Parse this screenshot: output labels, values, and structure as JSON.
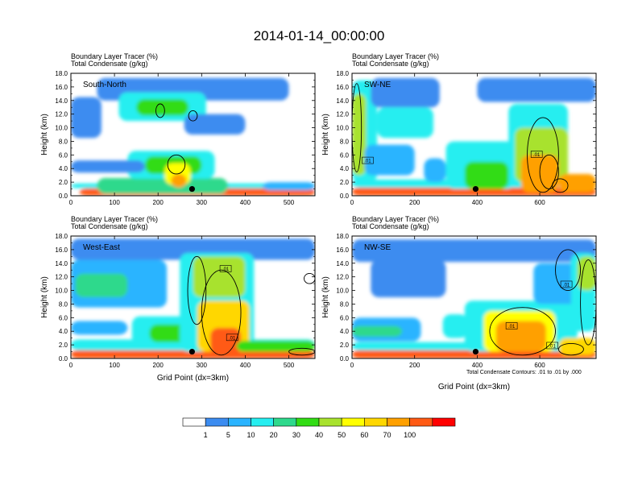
{
  "page": {
    "title": "2014-01-14_00:00:00",
    "x_axis_label": "Grid Point (dx=3km)",
    "contour_note": "Total Condensate Contours: .01 to .01 by .000"
  },
  "colorbar": {
    "colors": [
      "#ffffff",
      "#3c8cf0",
      "#2ab4ff",
      "#26eef0",
      "#2ed98c",
      "#32dc14",
      "#a8e22d",
      "#ffff00",
      "#ffd700",
      "#ffa000",
      "#ff5a14",
      "#ff0000"
    ],
    "labels": [
      "1",
      "5",
      "10",
      "20",
      "30",
      "40",
      "50",
      "60",
      "70",
      "100"
    ]
  },
  "chart_data": [
    {
      "type": "heatmap",
      "panel": "South-North",
      "title_line1": "Boundary Layer Tracer   (%)",
      "title_line2": "Total Condensate   (g/kg)",
      "xlabel": "",
      "ylabel": "Height (km)",
      "xlim": [
        0,
        560
      ],
      "ylim": [
        0,
        18
      ],
      "xticks": [
        "0",
        "100",
        "200",
        "300",
        "400",
        "500"
      ],
      "xtick_values": [
        0,
        100,
        200,
        300,
        400,
        500
      ],
      "yticks": [
        "0.0",
        "2.0",
        "4.0",
        "6.0",
        "8.0",
        "10.0",
        "12.0",
        "14.0",
        "16.0",
        "18.0"
      ],
      "marker": {
        "x": 278,
        "y": 1.0
      },
      "blobs": [
        {
          "x": [
            20,
            560
          ],
          "y": [
            0,
            1.1
          ],
          "level": 10
        },
        {
          "x": [
            0,
            560
          ],
          "y": [
            1.1,
            1.8
          ],
          "level": 3
        },
        {
          "x": [
            60,
            360
          ],
          "y": [
            0.3,
            2.6
          ],
          "level": 4
        },
        {
          "x": [
            130,
            330
          ],
          "y": [
            2.5,
            6.6
          ],
          "level": 3
        },
        {
          "x": [
            170,
            300
          ],
          "y": [
            3.2,
            5.8
          ],
          "level": 5
        },
        {
          "x": [
            215,
            275
          ],
          "y": [
            1.6,
            4.8
          ],
          "level": 7
        },
        {
          "x": [
            230,
            265
          ],
          "y": [
            1.2,
            3.2
          ],
          "level": 9
        },
        {
          "x": [
            0,
            170
          ],
          "y": [
            3.4,
            5.2
          ],
          "level": 1
        },
        {
          "x": [
            60,
            500
          ],
          "y": [
            14.0,
            17.3
          ],
          "level": 1
        },
        {
          "x": [
            110,
            310
          ],
          "y": [
            11.0,
            15.2
          ],
          "level": 3
        },
        {
          "x": [
            150,
            270
          ],
          "y": [
            11.8,
            14.2
          ],
          "level": 5
        },
        {
          "x": [
            0,
            70
          ],
          "y": [
            8.5,
            14.5
          ],
          "level": 1
        },
        {
          "x": [
            260,
            400
          ],
          "y": [
            9.0,
            12.0
          ],
          "level": 1
        },
        {
          "x": [
            440,
            560
          ],
          "y": [
            0.8,
            2.0
          ],
          "level": 2
        }
      ],
      "contours": [
        {
          "x": [
            195,
            215
          ],
          "y": [
            11.5,
            13.5
          ]
        },
        {
          "x": [
            270,
            290
          ],
          "y": [
            11.0,
            12.5
          ]
        },
        {
          "x": [
            222,
            262
          ],
          "y": [
            3.2,
            6.0
          ]
        }
      ],
      "box_labels": []
    },
    {
      "type": "heatmap",
      "panel": "SW-NE",
      "title_line1": "Boundary Layer Tracer   (%)",
      "title_line2": "Total Condensate   (g/kg)",
      "xlabel": "",
      "ylabel": "Height (km)",
      "xlim": [
        0,
        780
      ],
      "ylim": [
        0,
        18
      ],
      "xticks": [
        "0",
        "200",
        "400",
        "600"
      ],
      "xtick_values": [
        0,
        200,
        400,
        600
      ],
      "yticks": [
        "0.0",
        "2.0",
        "4.0",
        "6.0",
        "8.0",
        "10.0",
        "12.0",
        "14.0",
        "16.0",
        "18.0"
      ],
      "marker": {
        "x": 395,
        "y": 1.0
      },
      "blobs": [
        {
          "x": [
            0,
            780
          ],
          "y": [
            0,
            1.2
          ],
          "level": 10
        },
        {
          "x": [
            0,
            780
          ],
          "y": [
            1.2,
            2.4
          ],
          "level": 3
        },
        {
          "x": [
            0,
            80
          ],
          "y": [
            2.0,
            17.0
          ],
          "level": 3
        },
        {
          "x": [
            0,
            45
          ],
          "y": [
            3.0,
            15.0
          ],
          "level": 6
        },
        {
          "x": [
            60,
            280
          ],
          "y": [
            13.0,
            17.3
          ],
          "level": 1
        },
        {
          "x": [
            80,
            260
          ],
          "y": [
            8.5,
            13.0
          ],
          "level": 3
        },
        {
          "x": [
            40,
            200
          ],
          "y": [
            3.0,
            7.5
          ],
          "level": 2
        },
        {
          "x": [
            400,
            780
          ],
          "y": [
            13.8,
            17.3
          ],
          "level": 1
        },
        {
          "x": [
            500,
            690
          ],
          "y": [
            2.0,
            13.5
          ],
          "level": 3
        },
        {
          "x": [
            520,
            690
          ],
          "y": [
            2.0,
            10.0
          ],
          "level": 6
        },
        {
          "x": [
            540,
            660
          ],
          "y": [
            0.5,
            6.0
          ],
          "level": 9
        },
        {
          "x": [
            300,
            520
          ],
          "y": [
            1.0,
            8.0
          ],
          "level": 3
        },
        {
          "x": [
            360,
            500
          ],
          "y": [
            1.0,
            5.0
          ],
          "level": 5
        },
        {
          "x": [
            660,
            780
          ],
          "y": [
            0.5,
            3.2
          ],
          "level": 9
        },
        {
          "x": [
            230,
            300
          ],
          "y": [
            2.0,
            5.5
          ],
          "level": 2
        }
      ],
      "contours": [
        {
          "x": [
            560,
            660
          ],
          "y": [
            0.5,
            11.5
          ]
        },
        {
          "x": [
            600,
            660
          ],
          "y": [
            1.0,
            6.0
          ]
        },
        {
          "x": [
            0,
            30
          ],
          "y": [
            3.5,
            16.5
          ]
        },
        {
          "x": [
            640,
            690
          ],
          "y": [
            0.5,
            2.5
          ]
        }
      ],
      "box_labels": [
        {
          "x": 50,
          "y": 5.2,
          "text": ".01"
        },
        {
          "x": 590,
          "y": 6.1,
          "text": ".01"
        }
      ]
    },
    {
      "type": "heatmap",
      "panel": "West-East",
      "title_line1": "Boundary Layer Tracer   (%)",
      "title_line2": "Total Condensate   (g/kg)",
      "xlabel": "Grid Point (dx=3km)",
      "ylabel": "Height (km)",
      "xlim": [
        0,
        560
      ],
      "ylim": [
        0,
        18
      ],
      "xticks": [
        "0",
        "100",
        "200",
        "300",
        "400",
        "500"
      ],
      "xtick_values": [
        0,
        100,
        200,
        300,
        400,
        500
      ],
      "yticks": [
        "0.0",
        "2.0",
        "4.0",
        "6.0",
        "8.0",
        "10.0",
        "12.0",
        "14.0",
        "16.0",
        "18.0"
      ],
      "marker": {
        "x": 278,
        "y": 1.0
      },
      "blobs": [
        {
          "x": [
            0,
            560
          ],
          "y": [
            0,
            1.2
          ],
          "level": 10
        },
        {
          "x": [
            0,
            560
          ],
          "y": [
            1.2,
            2.8
          ],
          "level": 3
        },
        {
          "x": [
            0,
            560
          ],
          "y": [
            14.5,
            17.6
          ],
          "level": 1
        },
        {
          "x": [
            0,
            220
          ],
          "y": [
            7.5,
            14.5
          ],
          "level": 2
        },
        {
          "x": [
            10,
            130
          ],
          "y": [
            9.0,
            12.5
          ],
          "level": 4
        },
        {
          "x": [
            140,
            320
          ],
          "y": [
            2.0,
            6.2
          ],
          "level": 3
        },
        {
          "x": [
            180,
            300
          ],
          "y": [
            2.4,
            5.0
          ],
          "level": 5
        },
        {
          "x": [
            250,
            420
          ],
          "y": [
            1.0,
            15.5
          ],
          "level": 3
        },
        {
          "x": [
            280,
            400
          ],
          "y": [
            9.0,
            15.0
          ],
          "level": 6
        },
        {
          "x": [
            290,
            410
          ],
          "y": [
            1.0,
            8.5
          ],
          "level": 8
        },
        {
          "x": [
            320,
            390
          ],
          "y": [
            0.5,
            4.5
          ],
          "level": 10
        },
        {
          "x": [
            0,
            130
          ],
          "y": [
            3.5,
            5.5
          ],
          "level": 2
        },
        {
          "x": [
            380,
            560
          ],
          "y": [
            1.0,
            2.6
          ],
          "level": 5
        }
      ],
      "contours": [
        {
          "x": [
            268,
            310
          ],
          "y": [
            5.0,
            15.0
          ]
        },
        {
          "x": [
            300,
            390
          ],
          "y": [
            0.5,
            13.0
          ]
        },
        {
          "x": [
            500,
            560
          ],
          "y": [
            0.5,
            1.5
          ]
        },
        {
          "x": [
            535,
            560
          ],
          "y": [
            11.0,
            12.5
          ]
        }
      ],
      "box_labels": [
        {
          "x": 355,
          "y": 13.2,
          "text": ".01"
        },
        {
          "x": 370,
          "y": 3.1,
          "text": ".01"
        }
      ]
    },
    {
      "type": "heatmap",
      "panel": "NW-SE",
      "title_line1": "Boundary Layer Tracer   (%)",
      "title_line2": "Total Condensate   (g/kg)",
      "xlabel": "Grid Point (dx=3km)",
      "ylabel": "Height (km)",
      "xlim": [
        0,
        780
      ],
      "ylim": [
        0,
        18
      ],
      "xticks": [
        "0",
        "200",
        "400",
        "600"
      ],
      "xtick_values": [
        0,
        200,
        400,
        600
      ],
      "yticks": [
        "0.0",
        "2.0",
        "4.0",
        "6.0",
        "8.0",
        "10.0",
        "12.0",
        "14.0",
        "16.0",
        "18.0"
      ],
      "marker": {
        "x": 395,
        "y": 1.0
      },
      "blobs": [
        {
          "x": [
            0,
            780
          ],
          "y": [
            0,
            1.2
          ],
          "level": 10
        },
        {
          "x": [
            0,
            780
          ],
          "y": [
            1.2,
            2.4
          ],
          "level": 3
        },
        {
          "x": [
            0,
            780
          ],
          "y": [
            14.2,
            17.5
          ],
          "level": 1
        },
        {
          "x": [
            0,
            220
          ],
          "y": [
            2.5,
            6.0
          ],
          "level": 2
        },
        {
          "x": [
            0,
            160
          ],
          "y": [
            3.2,
            4.8
          ],
          "level": 4
        },
        {
          "x": [
            60,
            300
          ],
          "y": [
            9.0,
            14.5
          ],
          "level": 1
        },
        {
          "x": [
            360,
            720
          ],
          "y": [
            1.0,
            8.5
          ],
          "level": 3
        },
        {
          "x": [
            420,
            650
          ],
          "y": [
            1.0,
            7.0
          ],
          "level": 7
        },
        {
          "x": [
            460,
            620
          ],
          "y": [
            1.0,
            5.5
          ],
          "level": 9
        },
        {
          "x": [
            580,
            780
          ],
          "y": [
            8.0,
            14.0
          ],
          "level": 2
        },
        {
          "x": [
            700,
            780
          ],
          "y": [
            4.0,
            15.5
          ],
          "level": 3
        },
        {
          "x": [
            720,
            780
          ],
          "y": [
            10.0,
            15.0
          ],
          "level": 6
        },
        {
          "x": [
            290,
            370
          ],
          "y": [
            3.0,
            6.5
          ],
          "level": 3
        },
        {
          "x": [
            660,
            780
          ],
          "y": [
            0.5,
            3.0
          ],
          "level": 8
        }
      ],
      "contours": [
        {
          "x": [
            440,
            650
          ],
          "y": [
            0.5,
            7.5
          ]
        },
        {
          "x": [
            650,
            730
          ],
          "y": [
            10.0,
            16.0
          ]
        },
        {
          "x": [
            730,
            780
          ],
          "y": [
            2.0,
            14.5
          ]
        },
        {
          "x": [
            660,
            740
          ],
          "y": [
            0.5,
            2.2
          ]
        }
      ],
      "box_labels": [
        {
          "x": 510,
          "y": 4.8,
          "text": ".01"
        },
        {
          "x": 685,
          "y": 10.9,
          "text": ".01"
        },
        {
          "x": 640,
          "y": 1.9,
          "text": ".01"
        }
      ]
    }
  ]
}
